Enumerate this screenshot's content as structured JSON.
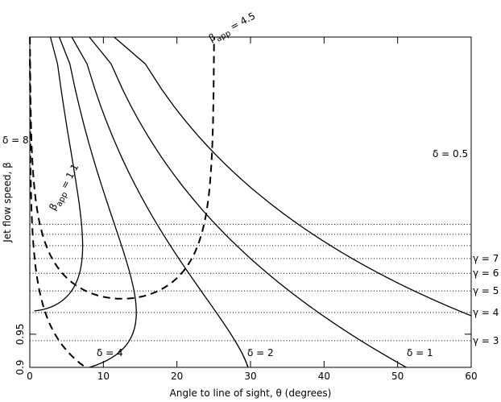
{
  "chart_data": {
    "type": "line",
    "title": "",
    "xlabel": "Angle to line of sight, θ (degrees)",
    "ylabel": "Jet flow speed, β",
    "xlim": [
      0,
      60
    ],
    "ylim": [
      0.9,
      1.0
    ],
    "x_ticks": [
      0,
      10,
      20,
      30,
      40,
      50,
      60
    ],
    "x_tick_labels": [
      "0",
      "10",
      "20",
      "30",
      "40",
      "50",
      "60"
    ],
    "y_ticks": [
      0.9,
      0.95
    ],
    "y_tick_labels": [
      "0.9",
      "0.95"
    ],
    "grid": false,
    "doppler_curves": [
      {
        "label": "δ = 0.5",
        "delta": 0.5
      },
      {
        "label": "δ = 1",
        "delta": 1
      },
      {
        "label": "δ = 2",
        "delta": 2
      },
      {
        "label": "δ = 4",
        "delta": 4
      },
      {
        "label": "δ = 8",
        "delta": 8
      }
    ],
    "beta_app_curves": [
      {
        "label_main": "β",
        "label_sub": "app",
        "label_rest": " = 4.5",
        "beta_app": 4.5
      },
      {
        "label_main": "β",
        "label_sub": "app",
        "label_rest": " = 1.1",
        "beta_app": 1.1
      }
    ],
    "gamma_lines": [
      {
        "label": "γ = 3",
        "gamma": 3
      },
      {
        "label": "γ = 4",
        "gamma": 4
      },
      {
        "label": "γ = 5",
        "gamma": 5
      },
      {
        "label": "γ = 6",
        "gamma": 6
      },
      {
        "label": "γ = 7",
        "gamma": 7
      },
      {
        "label": "",
        "gamma": 8
      },
      {
        "label": "",
        "gamma": 9
      },
      {
        "label": "",
        "gamma": 10
      }
    ]
  }
}
